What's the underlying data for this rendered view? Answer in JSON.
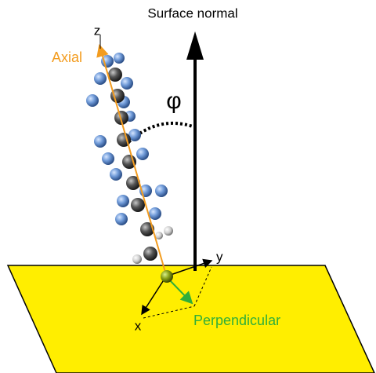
{
  "labels": {
    "surface_normal": "Surface normal",
    "z": "z",
    "axial": "Axial",
    "phi": "φ",
    "y": "y",
    "x": "x",
    "perpendicular": "Perpendicular"
  }
}
